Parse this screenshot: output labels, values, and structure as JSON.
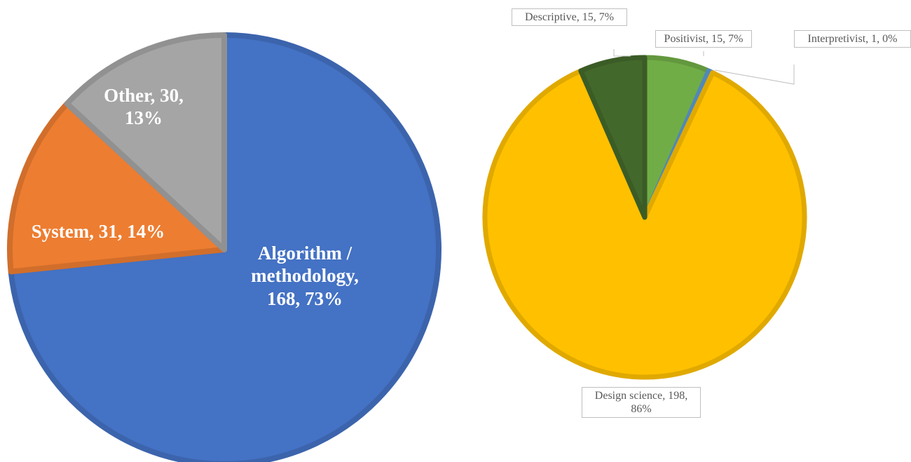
{
  "chart_data": [
    {
      "type": "pie",
      "categories": [
        "Algorithm / methodology",
        "System",
        "Other"
      ],
      "values": [
        168,
        31,
        30
      ],
      "value_labels": [
        "168, 73%",
        "31, 14%",
        "30, 13%"
      ],
      "colors": [
        "#4472c4",
        "#ed7d31",
        "#a5a5a5"
      ]
    },
    {
      "type": "pie",
      "categories": [
        "Positivist",
        "Interpretivist",
        "Design science",
        "Descriptive"
      ],
      "values": [
        15,
        1,
        198,
        15
      ],
      "value_labels": [
        "15, 7%",
        "1, 0%",
        "198, 86%",
        "15, 7%"
      ],
      "colors": [
        "#70ad47",
        "#5b9bd5",
        "#ffc000",
        "#43682b"
      ]
    }
  ]
}
